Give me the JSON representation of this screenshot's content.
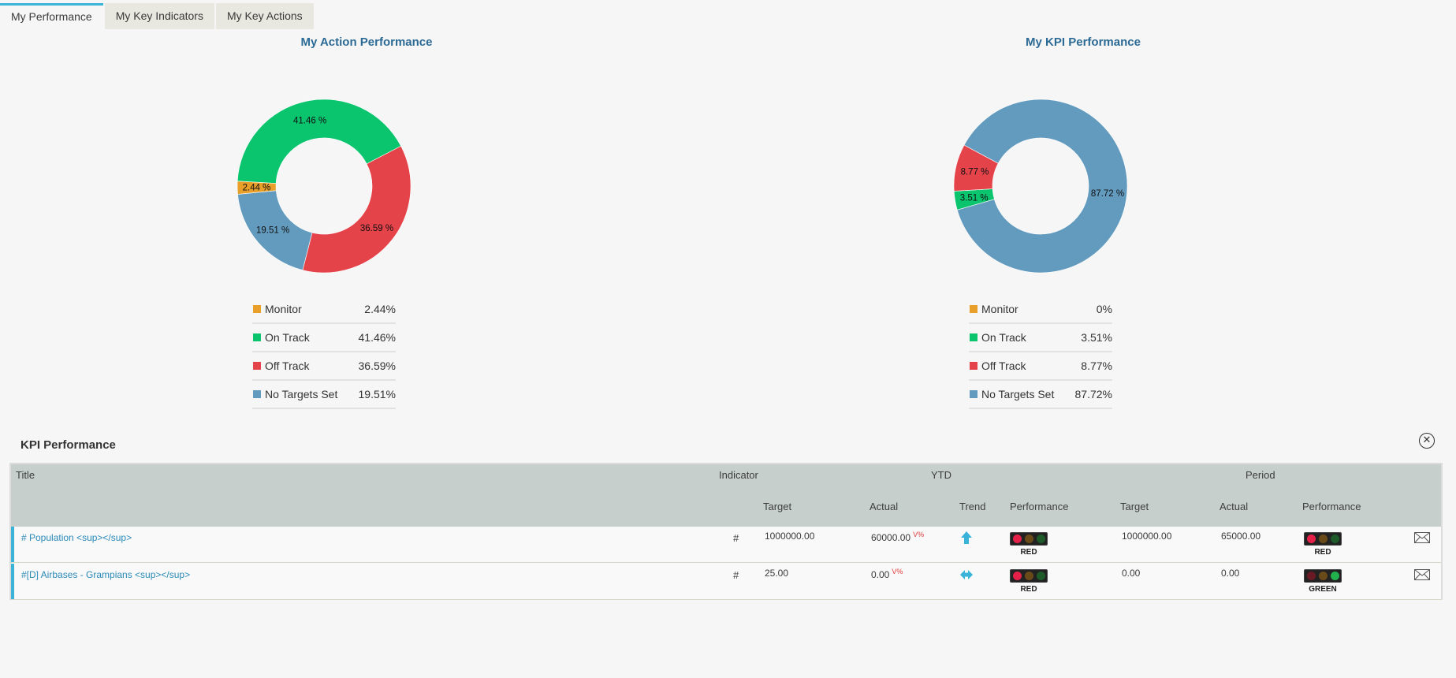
{
  "tabs": [
    {
      "label": "My Performance",
      "active": true
    },
    {
      "label": "My Key Indicators",
      "active": false
    },
    {
      "label": "My Key Actions",
      "active": false
    }
  ],
  "charts": {
    "action": {
      "title": "My Action Performance",
      "legend": [
        {
          "label": "Monitor",
          "value": "2.44%"
        },
        {
          "label": "On Track",
          "value": "41.46%"
        },
        {
          "label": "Off Track",
          "value": "36.59%"
        },
        {
          "label": "No Targets Set",
          "value": "19.51%"
        }
      ]
    },
    "kpi": {
      "title": "My KPI Performance",
      "legend": [
        {
          "label": "Monitor",
          "value": "0%"
        },
        {
          "label": "On Track",
          "value": "3.51%"
        },
        {
          "label": "Off Track",
          "value": "8.77%"
        },
        {
          "label": "No Targets Set",
          "value": "87.72%"
        }
      ]
    }
  },
  "colors": {
    "monitor": "#e8a02b",
    "on_track": "#0bc46e",
    "off_track": "#e5434a",
    "no_targets": "#639bbf",
    "accent": "#39b3d7",
    "title_blue": "#2c6a96"
  },
  "chart_data": [
    {
      "type": "pie",
      "title": "My Action Performance",
      "categories": [
        "Monitor",
        "On Track",
        "Off Track",
        "No Targets Set"
      ],
      "values": [
        2.44,
        41.46,
        36.59,
        19.51
      ],
      "slice_labels": [
        "2.44 %",
        "41.46 %",
        "36.59 %",
        "19.51 %"
      ]
    },
    {
      "type": "pie",
      "title": "My KPI Performance",
      "categories": [
        "Monitor",
        "On Track",
        "Off Track",
        "No Targets Set"
      ],
      "values": [
        0,
        3.51,
        8.77,
        87.72
      ],
      "slice_labels": [
        "",
        "3.51 %",
        "8.77 %",
        "87.72 %"
      ]
    }
  ],
  "kpi_section": {
    "title": "KPI Performance",
    "close_glyph": "✕",
    "headers": {
      "title": "Title",
      "indicator": "Indicator",
      "ytd": "YTD",
      "period": "Period",
      "ytd_target": "Target",
      "ytd_actual": "Actual",
      "trend": "Trend",
      "ytd_performance": "Performance",
      "period_target": "Target",
      "period_actual": "Actual",
      "period_performance": "Performance"
    },
    "rows": [
      {
        "title": "# Population <sup></sup>",
        "indicator": "#",
        "ytd_target": "1000000.00",
        "ytd_actual": "60000.00",
        "ytd_actual_flag": "V%",
        "trend": "up-arrow-icon",
        "ytd_status": "RED",
        "period_target": "1000000.00",
        "period_actual": "65000.00",
        "period_status": "RED"
      },
      {
        "title": "#[D] Airbases - Grampians <sup></sup>",
        "indicator": "#",
        "ytd_target": "25.00",
        "ytd_actual": "0.00",
        "ytd_actual_flag": "V%",
        "trend": "left-right-arrow-icon",
        "ytd_status": "RED",
        "period_target": "0.00",
        "period_actual": "0.00",
        "period_status": "GREEN"
      }
    ]
  }
}
